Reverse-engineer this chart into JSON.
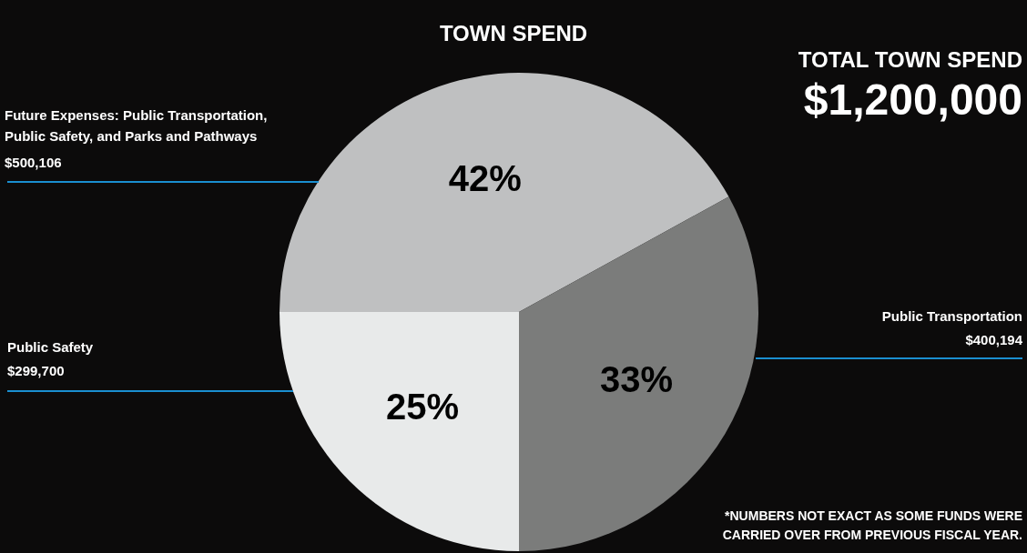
{
  "chart_data": {
    "type": "pie",
    "title": "TOWN SPEND",
    "categories": [
      "Future Expenses: Public Transportation, Public Safety, and Parks and Pathways",
      "Public Transportation",
      "Public Safety"
    ],
    "values": [
      42,
      33,
      25
    ],
    "value_labels": [
      "42%",
      "33%",
      "25%"
    ],
    "colors": [
      "#bfc0c1",
      "#7b7c7b",
      "#e8eaea"
    ],
    "annotations": [
      "TOTAL TOWN SPEND",
      "$1,200,000",
      "$500,106",
      "$400,194",
      "$299,700",
      "*NUMBERS NOT EXACT AS SOME FUNDS WERE CARRIED OVER FROM PREVIOUS FISCAL YEAR."
    ]
  }
}
